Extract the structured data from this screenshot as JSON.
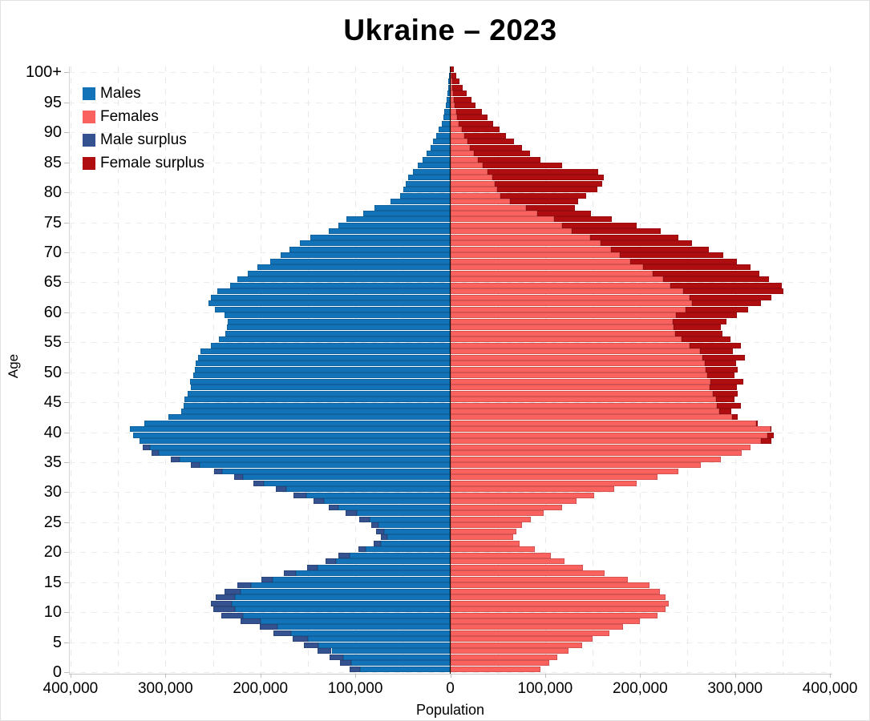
{
  "chart_data": {
    "type": "bar",
    "subtype": "population_pyramid",
    "title": "Ukraine – 2023",
    "xlabel": "Population",
    "ylabel": "Age",
    "x_axis_range": [
      -400000,
      400000
    ],
    "x_grid_step": 50000,
    "grid": true,
    "legend_position": "top-left",
    "colors": {
      "males": "#1373b9",
      "females": "#f9625f",
      "male_surplus": "#34528f",
      "female_surplus": "#b00d10",
      "center_axis": "#111111"
    },
    "legend": [
      {
        "label": "Males",
        "color_key": "males"
      },
      {
        "label": "Females",
        "color_key": "females"
      },
      {
        "label": "Male surplus",
        "color_key": "male_surplus"
      },
      {
        "label": "Female surplus",
        "color_key": "female_surplus"
      }
    ],
    "x_ticks": [
      {
        "value": -400000,
        "label": "400,000"
      },
      {
        "value": -300000,
        "label": "300,000"
      },
      {
        "value": -200000,
        "label": "200,000"
      },
      {
        "value": -100000,
        "label": "100,000"
      },
      {
        "value": 0,
        "label": "0"
      },
      {
        "value": 100000,
        "label": "100,000"
      },
      {
        "value": 200000,
        "label": "200,000"
      },
      {
        "value": 300000,
        "label": "300,000"
      },
      {
        "value": 400000,
        "label": "400,000"
      }
    ],
    "y_ticks": [
      {
        "age": 0,
        "label": "0"
      },
      {
        "age": 5,
        "label": "5"
      },
      {
        "age": 10,
        "label": "10"
      },
      {
        "age": 15,
        "label": "15"
      },
      {
        "age": 20,
        "label": "20"
      },
      {
        "age": 25,
        "label": "25"
      },
      {
        "age": 30,
        "label": "30"
      },
      {
        "age": 35,
        "label": "35"
      },
      {
        "age": 40,
        "label": "40"
      },
      {
        "age": 45,
        "label": "45"
      },
      {
        "age": 50,
        "label": "50"
      },
      {
        "age": 55,
        "label": "55"
      },
      {
        "age": 60,
        "label": "60"
      },
      {
        "age": 65,
        "label": "65"
      },
      {
        "age": 70,
        "label": "70"
      },
      {
        "age": 75,
        "label": "75"
      },
      {
        "age": 80,
        "label": "80"
      },
      {
        "age": 85,
        "label": "85"
      },
      {
        "age": 90,
        "label": "90"
      },
      {
        "age": 95,
        "label": "95"
      },
      {
        "age": 100,
        "label": "100+"
      }
    ],
    "ages": "single-year ages 0 through 100+, array index = age",
    "males": [
      106000,
      116000,
      127000,
      140000,
      154000,
      166000,
      186000,
      201000,
      221000,
      241000,
      250000,
      252000,
      247000,
      238000,
      224000,
      199000,
      175000,
      151000,
      131000,
      118000,
      97000,
      81000,
      73000,
      78000,
      83000,
      96000,
      110000,
      128000,
      144000,
      165000,
      184000,
      207000,
      228000,
      249000,
      273000,
      294000,
      315000,
      324000,
      327000,
      334000,
      337000,
      322000,
      297000,
      283000,
      281000,
      280000,
      277000,
      273000,
      274000,
      271000,
      269000,
      268000,
      266000,
      263000,
      252000,
      244000,
      237000,
      235000,
      234000,
      238000,
      248000,
      255000,
      252000,
      245000,
      232000,
      224000,
      213000,
      203000,
      190000,
      179000,
      169000,
      158000,
      147000,
      128000,
      118000,
      109000,
      92000,
      80000,
      63000,
      53000,
      49000,
      47000,
      44000,
      39000,
      34000,
      29000,
      25000,
      21000,
      18000,
      15000,
      12000,
      9000,
      7000,
      6000,
      5000,
      4000,
      3200,
      2500,
      1800,
      1200,
      800
    ],
    "females": [
      95000,
      104000,
      113000,
      125000,
      139000,
      150000,
      168000,
      182000,
      200000,
      218000,
      227000,
      230000,
      227000,
      221000,
      210000,
      187000,
      163000,
      140000,
      120000,
      106000,
      89000,
      73000,
      66000,
      70000,
      76000,
      85000,
      98000,
      118000,
      133000,
      152000,
      173000,
      196000,
      218000,
      240000,
      264000,
      285000,
      307000,
      316000,
      338000,
      341000,
      338000,
      324000,
      303000,
      296000,
      306000,
      299000,
      303000,
      302000,
      309000,
      299000,
      303000,
      301000,
      310000,
      298000,
      306000,
      295000,
      287000,
      285000,
      291000,
      302000,
      314000,
      327000,
      338000,
      351000,
      349000,
      336000,
      326000,
      316000,
      302000,
      288000,
      272000,
      255000,
      240000,
      222000,
      196000,
      170000,
      148000,
      131000,
      135000,
      143000,
      155000,
      160000,
      162000,
      156000,
      118000,
      95000,
      84000,
      76000,
      67000,
      59000,
      52000,
      45000,
      39000,
      33000,
      27000,
      22000,
      17000,
      13000,
      9500,
      6500,
      4000
    ]
  }
}
